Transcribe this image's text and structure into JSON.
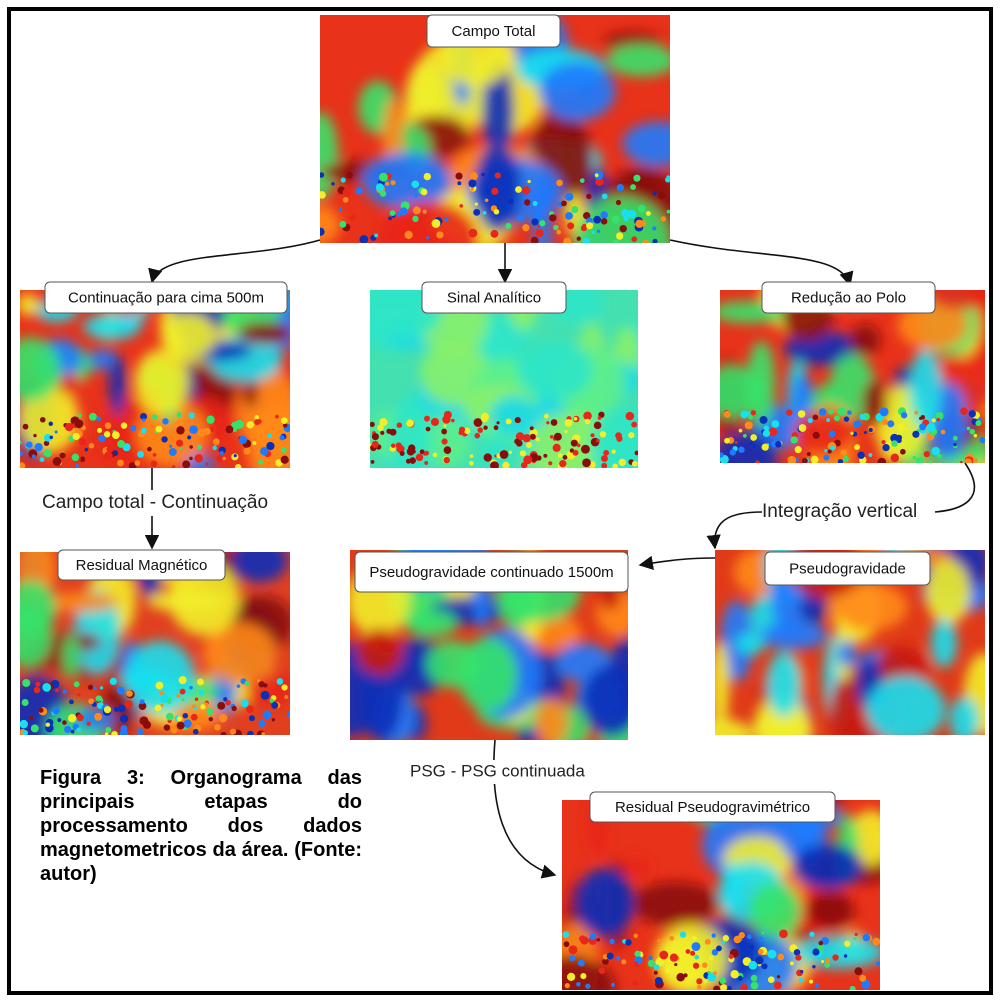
{
  "nodes": [
    {
      "label": "Campo Total"
    },
    {
      "label": "Continuação para cima 500m"
    },
    {
      "label": "Sinal Analítico"
    },
    {
      "label": "Redução ao Polo"
    },
    {
      "label": "Residual Magnético"
    },
    {
      "label": "Pseudogravidade continuado 1500m"
    },
    {
      "label": "Pseudogravidade"
    },
    {
      "label": "Residual Pseudogravimétrico"
    }
  ],
  "edges": [
    {
      "label": "Campo total - Continuação"
    },
    {
      "label": "Integração vertical"
    },
    {
      "label": "PSG - PSG continuada"
    }
  ],
  "caption": "Figura 3: Organograma das principais etapas do processamento dos dados magnetometricos da área. (Fonte: autor)"
}
